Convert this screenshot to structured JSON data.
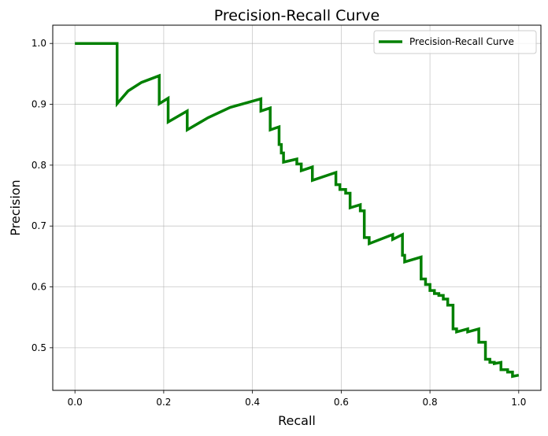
{
  "chart_data": {
    "type": "line",
    "title": "Precision-Recall Curve",
    "xlabel": "Recall",
    "ylabel": "Precision",
    "xlim": [
      -0.05,
      1.05
    ],
    "ylim": [
      0.43,
      1.03
    ],
    "xticks": [
      0.0,
      0.2,
      0.4,
      0.6,
      0.8,
      1.0
    ],
    "xtick_labels": [
      "0.0",
      "0.2",
      "0.4",
      "0.6",
      "0.8",
      "1.0"
    ],
    "yticks": [
      0.5,
      0.6,
      0.7,
      0.8,
      0.9,
      1.0
    ],
    "ytick_labels": [
      "0.5",
      "0.6",
      "0.7",
      "0.8",
      "0.9",
      "1.0"
    ],
    "grid": true,
    "legend_position": "top-right",
    "series": [
      {
        "name": "Precision-Recall Curve",
        "color": "#008000",
        "x": [
          0.0,
          0.095,
          0.095,
          0.12,
          0.15,
          0.19,
          0.19,
          0.21,
          0.21,
          0.253,
          0.253,
          0.3,
          0.35,
          0.419,
          0.419,
          0.44,
          0.44,
          0.46,
          0.46,
          0.465,
          0.465,
          0.47,
          0.47,
          0.5,
          0.5,
          0.51,
          0.51,
          0.535,
          0.535,
          0.588,
          0.588,
          0.597,
          0.597,
          0.61,
          0.61,
          0.62,
          0.62,
          0.643,
          0.643,
          0.652,
          0.652,
          0.663,
          0.663,
          0.716,
          0.716,
          0.738,
          0.738,
          0.743,
          0.743,
          0.78,
          0.78,
          0.79,
          0.79,
          0.8,
          0.8,
          0.81,
          0.81,
          0.82,
          0.82,
          0.83,
          0.83,
          0.84,
          0.84,
          0.852,
          0.852,
          0.86,
          0.86,
          0.885,
          0.885,
          0.91,
          0.91,
          0.925,
          0.925,
          0.935,
          0.935,
          0.945,
          0.945,
          0.96,
          0.96,
          0.975,
          0.975,
          0.986,
          0.986,
          1.0
        ],
        "y": [
          1.0,
          1.0,
          0.901,
          0.922,
          0.936,
          0.947,
          0.901,
          0.91,
          0.871,
          0.889,
          0.858,
          0.878,
          0.895,
          0.909,
          0.889,
          0.894,
          0.858,
          0.863,
          0.834,
          0.834,
          0.82,
          0.82,
          0.805,
          0.81,
          0.802,
          0.802,
          0.791,
          0.797,
          0.775,
          0.788,
          0.768,
          0.768,
          0.76,
          0.76,
          0.754,
          0.754,
          0.73,
          0.735,
          0.725,
          0.725,
          0.681,
          0.681,
          0.671,
          0.686,
          0.678,
          0.686,
          0.652,
          0.652,
          0.641,
          0.649,
          0.613,
          0.613,
          0.604,
          0.604,
          0.594,
          0.594,
          0.589,
          0.589,
          0.586,
          0.586,
          0.58,
          0.58,
          0.57,
          0.57,
          0.531,
          0.531,
          0.526,
          0.531,
          0.526,
          0.531,
          0.509,
          0.509,
          0.481,
          0.481,
          0.476,
          0.476,
          0.474,
          0.476,
          0.464,
          0.464,
          0.46,
          0.46,
          0.453,
          0.455
        ]
      }
    ]
  }
}
